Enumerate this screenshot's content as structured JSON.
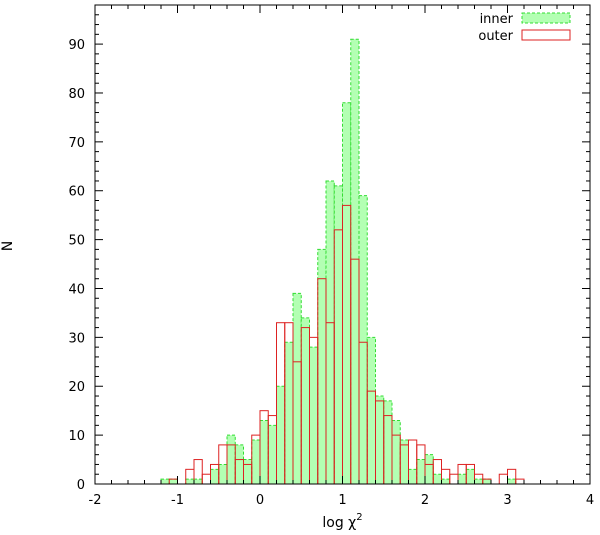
{
  "chart_data": {
    "type": "bar",
    "xlabel": "log χ",
    "xlabel_superscript": "2",
    "ylabel": "N",
    "xlim": [
      -2,
      4
    ],
    "ylim": [
      0,
      98
    ],
    "xticks": [
      "-2",
      "-1",
      "0",
      "1",
      "2",
      "3",
      "4"
    ],
    "yticks": [
      "0",
      "10",
      "20",
      "30",
      "40",
      "50",
      "60",
      "70",
      "80",
      "90"
    ],
    "bin_width": 0.1,
    "bin_centers": [
      -1.15,
      -1.05,
      -0.95,
      -0.85,
      -0.75,
      -0.65,
      -0.55,
      -0.45,
      -0.35,
      -0.25,
      -0.15,
      -0.05,
      0.05,
      0.15,
      0.25,
      0.35,
      0.45,
      0.55,
      0.65,
      0.75,
      0.85,
      0.95,
      1.05,
      1.15,
      1.25,
      1.35,
      1.45,
      1.55,
      1.65,
      1.75,
      1.85,
      1.95,
      2.05,
      2.15,
      2.25,
      2.35,
      2.45,
      2.55,
      2.65,
      2.75,
      2.85,
      2.95,
      3.05,
      3.15,
      3.25
    ],
    "series": [
      {
        "name": "inner",
        "fill": "#b3ffb3",
        "stroke": "#33dd33",
        "style": "filled-dashed",
        "values": [
          1,
          1,
          0,
          1,
          1,
          0,
          3,
          4,
          10,
          8,
          5,
          9,
          13,
          12,
          20,
          29,
          39,
          34,
          28,
          48,
          62,
          61,
          78,
          91,
          59,
          30,
          18,
          17,
          13,
          9,
          3,
          5,
          6,
          2,
          1,
          0,
          2,
          3,
          1,
          1,
          0,
          0,
          1,
          0,
          0
        ]
      },
      {
        "name": "outer",
        "fill": "none",
        "stroke": "#dd2222",
        "style": "outline",
        "values": [
          0,
          1,
          0,
          3,
          5,
          2,
          4,
          8,
          8,
          5,
          4,
          10,
          15,
          14,
          33,
          33,
          25,
          32,
          30,
          42,
          33,
          52,
          57,
          46,
          29,
          19,
          17,
          14,
          10,
          8,
          9,
          8,
          4,
          5,
          3,
          2,
          4,
          4,
          2,
          1,
          0,
          2,
          3,
          1,
          0
        ]
      }
    ],
    "legend": {
      "placement": "top-right",
      "entries": [
        "inner",
        "outer"
      ]
    },
    "grid": false
  }
}
